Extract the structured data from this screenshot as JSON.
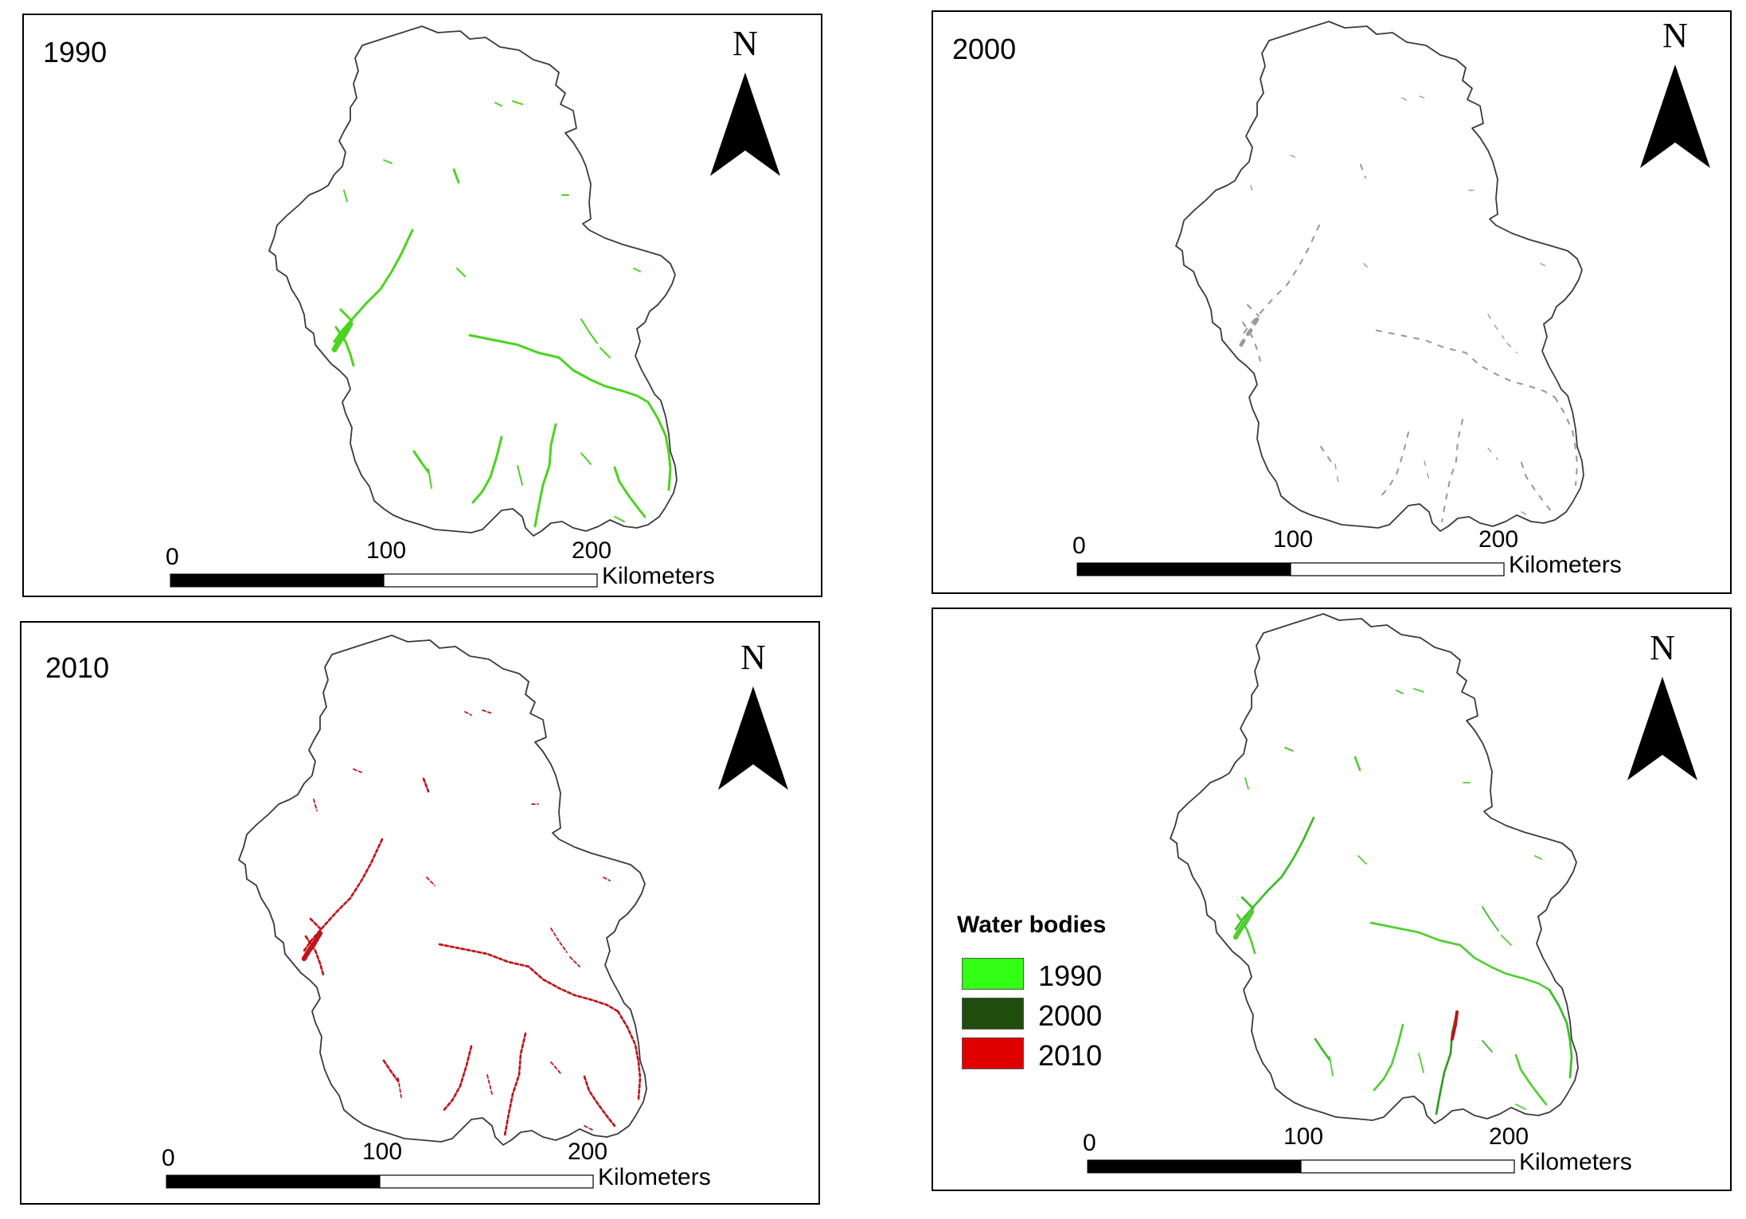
{
  "map": {
    "panels": [
      {
        "id": "1990",
        "year_label": "1990",
        "water_color": "#4cd31f",
        "north_label": "N",
        "scale": {
          "ticks": [
            "0",
            "100",
            "200"
          ],
          "unit": "Kilometers"
        }
      },
      {
        "id": "2000",
        "year_label": "2000",
        "water_color": "#9a9a9a",
        "north_label": "N",
        "scale": {
          "ticks": [
            "0",
            "100",
            "200"
          ],
          "unit": "Kilometers"
        }
      },
      {
        "id": "2010",
        "year_label": "2010",
        "water_color": "#c0141a",
        "north_label": "N",
        "scale": {
          "ticks": [
            "0",
            "100",
            "200"
          ],
          "unit": "Kilometers"
        }
      },
      {
        "id": "composite",
        "year_label": "",
        "water_color": "#3cbd25",
        "north_label": "N",
        "scale": {
          "ticks": [
            "0",
            "100",
            "200"
          ],
          "unit": "Kilometers"
        }
      }
    ],
    "legend": {
      "title": "Water bodies",
      "items": [
        {
          "label": "1990",
          "color": "#33ff14"
        },
        {
          "label": "2000",
          "color": "#1e4d0d"
        },
        {
          "label": "2010",
          "color": "#e00000"
        }
      ]
    }
  }
}
